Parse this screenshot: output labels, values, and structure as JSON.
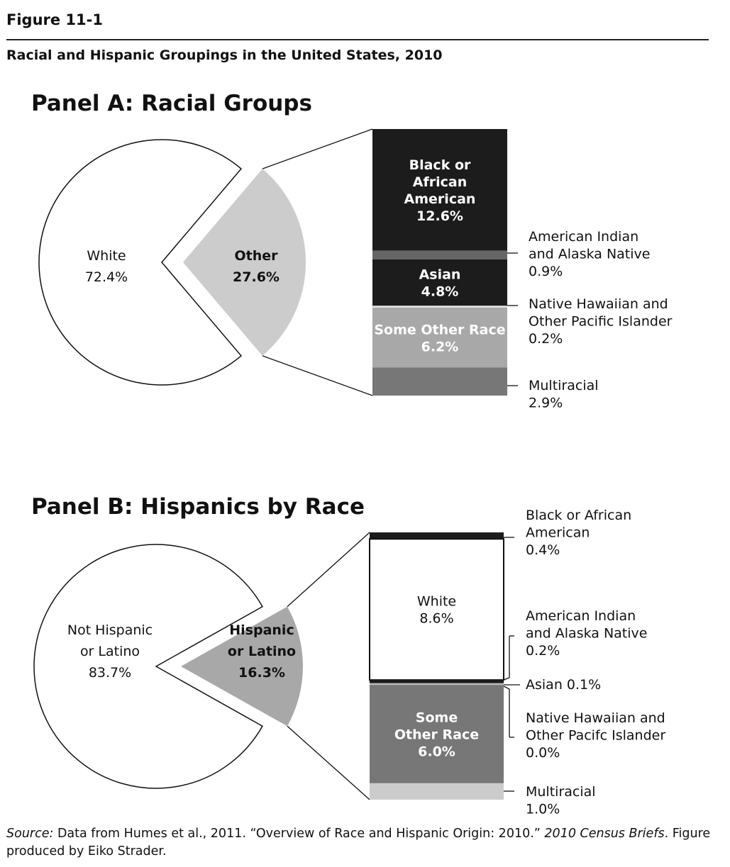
{
  "figure_number": "Figure 11-1",
  "title": "Racial and Hispanic Groupings in the United States, 2010",
  "source": {
    "label": "Source:",
    "text1": " Data from Humes et al., 2011. “Overview of Race and Hispanic Origin: 2010.” ",
    "publication": "2010 Census Briefs",
    "text2": ". Figure produced by Eiko Strader."
  },
  "chart_data": [
    {
      "type": "pie-of-bar",
      "title": "Panel A: Racial Groups",
      "pie": [
        {
          "name": "White",
          "value": 72.4,
          "label_lines": [
            "White",
            "72.4%"
          ],
          "color": "#ffffff",
          "bold": false
        },
        {
          "name": "Other",
          "value": 27.6,
          "label_lines": [
            "Other",
            "27.6%"
          ],
          "color": "#cccccc",
          "bold": true
        }
      ],
      "bar": [
        {
          "name": "Black or African American",
          "value": 12.6,
          "color": "#1c1c1c",
          "inside": true,
          "label_lines": [
            "Black or",
            "African",
            "American",
            "12.6%"
          ],
          "text_color": "#ffffff",
          "bold": true
        },
        {
          "name": "American Indian and Alaska Native",
          "value": 0.9,
          "color": "#666666",
          "inside": false,
          "label_lines": [
            "American  Indian",
            "and Alaska Native",
            "0.9%"
          ]
        },
        {
          "name": "Asian",
          "value": 4.8,
          "color": "#1c1c1c",
          "inside": true,
          "label_lines": [
            "Asian",
            "4.8%"
          ],
          "text_color": "#ffffff",
          "bold": true
        },
        {
          "name": "Native Hawaiian and Other Pacific Islander",
          "value": 0.2,
          "color": "#e0e0e0",
          "inside": false,
          "label_lines": [
            "Native Hawaiian and",
            "Other Pacific Islander",
            "0.2%"
          ]
        },
        {
          "name": "Some Other Race",
          "value": 6.2,
          "color": "#a8a8a8",
          "inside": true,
          "label_lines": [
            "Some Other Race",
            "6.2%"
          ],
          "text_color": "#ffffff",
          "bold": true
        },
        {
          "name": "Multiracial",
          "value": 2.9,
          "color": "#777777",
          "inside": false,
          "label_lines": [
            "Multiracial",
            "2.9%"
          ]
        }
      ]
    },
    {
      "type": "pie-of-bar",
      "title": "Panel B: Hispanics by Race",
      "pie": [
        {
          "name": "Not Hispanic or Latino",
          "value": 83.7,
          "label_lines": [
            "Not Hispanic",
            "or Latino",
            "83.7%"
          ],
          "color": "#ffffff",
          "bold": false
        },
        {
          "name": "Hispanic or Latino",
          "value": 16.3,
          "label_lines": [
            "Hispanic",
            "or Latino",
            "16.3%"
          ],
          "color": "#a8a8a8",
          "bold": true
        }
      ],
      "bar": [
        {
          "name": "Black or African American",
          "value": 0.4,
          "color": "#1c1c1c",
          "inside": false,
          "label_lines": [
            "Black or African",
            "American",
            "0.4%"
          ]
        },
        {
          "name": "White",
          "value": 8.6,
          "color": "#ffffff",
          "inside": true,
          "label_lines": [
            "White",
            "8.6%"
          ],
          "text_color": "#111111",
          "bold": false
        },
        {
          "name": "American Indian and Alaska Native",
          "value": 0.2,
          "color": "#1c1c1c",
          "inside": false,
          "label_lines": [
            "American Indian",
            "and Alaska Native",
            "0.2%"
          ]
        },
        {
          "name": "Asian",
          "value": 0.1,
          "color": "#bbbbbb",
          "inside": false,
          "label_lines": [
            "Asian     0.1%"
          ]
        },
        {
          "name": "Native Hawaiian and Other Pacific Islander",
          "value": 0.0,
          "color": "#bbbbbb",
          "inside": false,
          "label_lines": [
            "Native  Hawaiian and",
            "Other Pacifc Islander",
            "0.0%"
          ]
        },
        {
          "name": "Some Other Race",
          "value": 6.0,
          "color": "#777777",
          "inside": true,
          "label_lines": [
            "Some",
            "Other Race",
            "6.0%"
          ],
          "text_color": "#ffffff",
          "bold": true
        },
        {
          "name": "Multiracial",
          "value": 1.0,
          "color": "#cccccc",
          "inside": false,
          "label_lines": [
            "Multiracial",
            "1.0%"
          ]
        }
      ]
    }
  ]
}
